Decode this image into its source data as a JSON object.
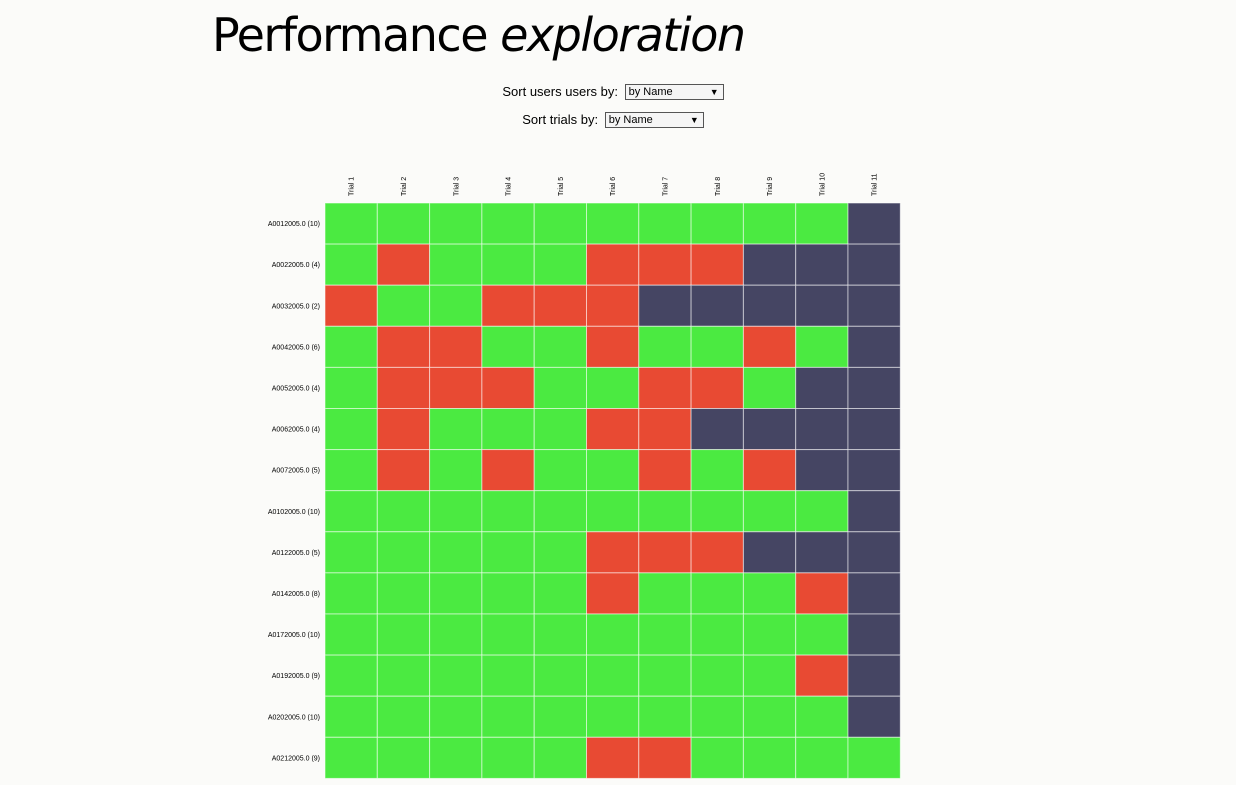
{
  "page": {
    "title_main": "Performance",
    "title_emph": "exploration"
  },
  "controls": {
    "sort_users": {
      "label": "Sort users users by:",
      "selected": "by Name"
    },
    "sort_trials": {
      "label": "Sort trials by:",
      "selected": "by Name"
    }
  },
  "colors": {
    "pass": "#4bea41",
    "fail": "#e84a33",
    "none": "#454563",
    "gridline": "#ffffff"
  },
  "chart_data": {
    "type": "heatmap",
    "legend_codes": {
      "1": "green",
      "0": "red",
      "-1": "dark"
    },
    "columns": [
      "Trial 1",
      "Trial 2",
      "Trial 3",
      "Trial 4",
      "Trial 5",
      "Trial 6",
      "Trial 7",
      "Trial 8",
      "Trial 9",
      "Trial 10",
      "Trial 11"
    ],
    "rows": [
      "A0012005.0 (10)",
      "A0022005.0 (4)",
      "A0032005.0 (2)",
      "A0042005.0 (6)",
      "A0052005.0 (4)",
      "A0062005.0 (4)",
      "A0072005.0 (5)",
      "A0102005.0 (10)",
      "A0122005.0 (5)",
      "A0142005.0 (8)",
      "A0172005.0 (10)",
      "A0192005.0 (9)",
      "A0202005.0 (10)",
      "A0212005.0 (9)"
    ],
    "values": [
      [
        1,
        1,
        1,
        1,
        1,
        1,
        1,
        1,
        1,
        1,
        -1
      ],
      [
        1,
        0,
        1,
        1,
        1,
        0,
        0,
        0,
        -1,
        -1,
        -1
      ],
      [
        0,
        1,
        1,
        0,
        0,
        0,
        -1,
        -1,
        -1,
        -1,
        -1
      ],
      [
        1,
        0,
        0,
        1,
        1,
        0,
        1,
        1,
        0,
        1,
        -1
      ],
      [
        1,
        0,
        0,
        0,
        1,
        1,
        0,
        0,
        1,
        -1,
        -1
      ],
      [
        1,
        0,
        1,
        1,
        1,
        0,
        0,
        -1,
        -1,
        -1,
        -1
      ],
      [
        1,
        0,
        1,
        0,
        1,
        1,
        0,
        1,
        0,
        -1,
        -1
      ],
      [
        1,
        1,
        1,
        1,
        1,
        1,
        1,
        1,
        1,
        1,
        -1
      ],
      [
        1,
        1,
        1,
        1,
        1,
        0,
        0,
        0,
        -1,
        -1,
        -1
      ],
      [
        1,
        1,
        1,
        1,
        1,
        0,
        1,
        1,
        1,
        0,
        -1
      ],
      [
        1,
        1,
        1,
        1,
        1,
        1,
        1,
        1,
        1,
        1,
        -1
      ],
      [
        1,
        1,
        1,
        1,
        1,
        1,
        1,
        1,
        1,
        0,
        -1
      ],
      [
        1,
        1,
        1,
        1,
        1,
        1,
        1,
        1,
        1,
        1,
        -1
      ],
      [
        1,
        1,
        1,
        1,
        1,
        0,
        0,
        1,
        1,
        1,
        1
      ]
    ]
  }
}
